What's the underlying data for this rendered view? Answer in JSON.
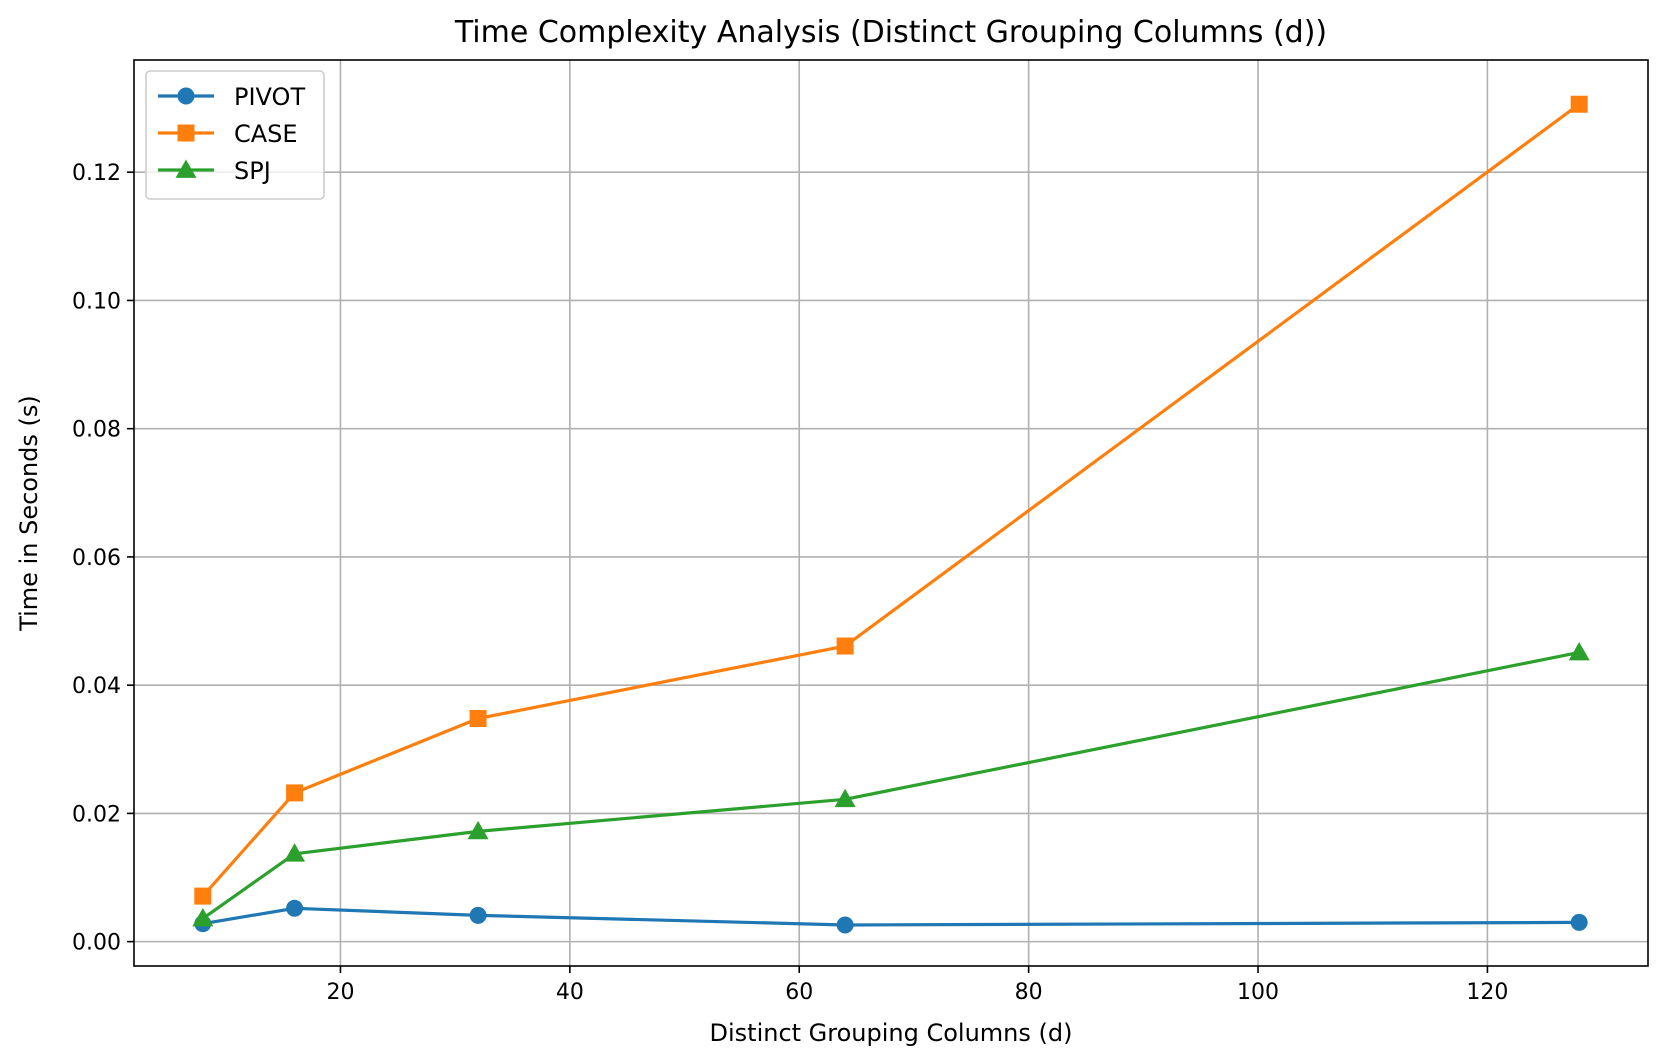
{
  "chart_data": {
    "type": "line",
    "title": "Time Complexity Analysis (Distinct Grouping Columns (d))",
    "xlabel": "Distinct Grouping Columns (d)",
    "ylabel": "Time in Seconds (s)",
    "x": [
      8,
      16,
      32,
      64,
      128
    ],
    "xlim": [
      2,
      134
    ],
    "ylim": [
      -0.0038,
      0.1375
    ],
    "xticks": [
      20,
      40,
      60,
      80,
      100,
      120
    ],
    "xtick_labels": [
      "20",
      "40",
      "60",
      "80",
      "100",
      "120"
    ],
    "yticks": [
      0,
      0.02,
      0.04,
      0.06,
      0.08,
      0.1,
      0.12
    ],
    "ytick_labels": [
      "0.00",
      "0.02",
      "0.04",
      "0.06",
      "0.08",
      "0.10",
      "0.12"
    ],
    "grid": true,
    "legend_position": "top-left",
    "series": [
      {
        "name": "PIVOT",
        "color": "#1f77b4",
        "marker": "circle",
        "values": [
          0.0028,
          0.0052,
          0.0041,
          0.0026,
          0.003
        ]
      },
      {
        "name": "CASE",
        "color": "#ff7f0e",
        "marker": "square",
        "values": [
          0.0071,
          0.0232,
          0.0348,
          0.0461,
          0.1306
        ]
      },
      {
        "name": "SPJ",
        "color": "#2ca02c",
        "marker": "triangle",
        "values": [
          0.0036,
          0.0137,
          0.0172,
          0.0222,
          0.0451
        ]
      }
    ]
  }
}
